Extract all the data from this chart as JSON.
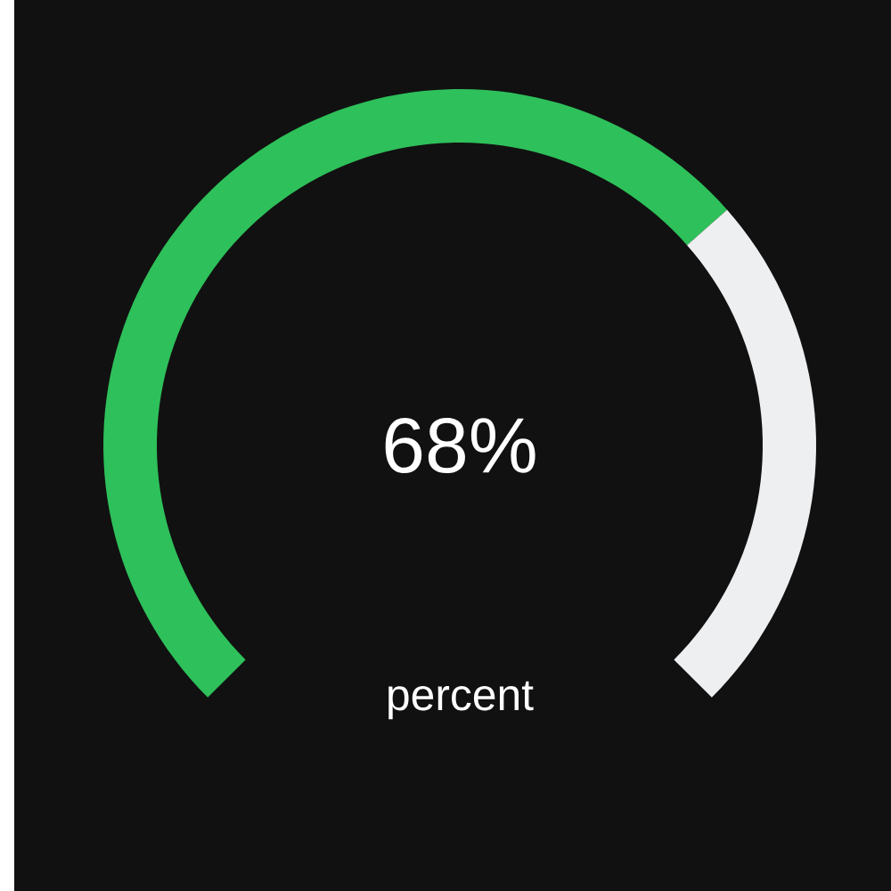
{
  "chart_data": {
    "type": "donut",
    "categories": [
      null,
      null
    ],
    "values": [
      68,
      32
    ],
    "colors": [
      "#2ec05a",
      "#eeeff1"
    ],
    "annotations": [
      "68%"
    ],
    "xlabel": "percent"
  }
}
